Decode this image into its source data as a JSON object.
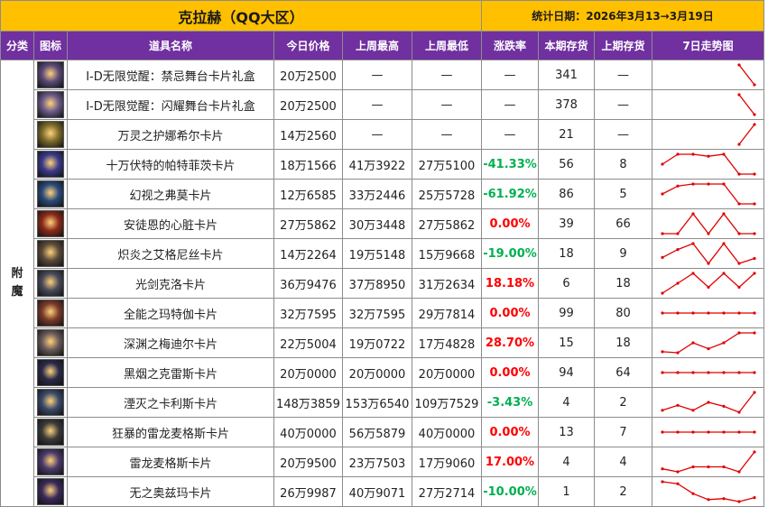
{
  "header": {
    "title": "克拉赫（QQ大区）",
    "date_label": "统计日期：2026年3月13→3月19日"
  },
  "columns": [
    "分类",
    "图标",
    "道具名称",
    "今日价格",
    "上周最高",
    "上周最低",
    "涨跌率",
    "本期存货",
    "上期存货",
    "7日走势图"
  ],
  "category": "附魔",
  "colors": {
    "title_bg": "#ffc000",
    "header_bg": "#7030a0",
    "header_text": "#ffffff",
    "rate_up": "#ff0000",
    "rate_down": "#00b050",
    "trend_line": "#e00000"
  },
  "rows": [
    {
      "name": "I-D无限觉醒：禁忌舞台卡片礼盒",
      "price": "20万2500",
      "high": "—",
      "low": "—",
      "rate": "—",
      "stock": "341",
      "prev": "—",
      "icon": "card-icon",
      "icon_color": "#5a4a78",
      "rate_kind": "none",
      "trend": [
        null,
        null,
        null,
        null,
        null,
        2,
        0
      ]
    },
    {
      "name": "I-D无限觉醒：闪耀舞台卡片礼盒",
      "price": "20万2500",
      "high": "—",
      "low": "—",
      "rate": "—",
      "stock": "378",
      "prev": "—",
      "icon": "card-icon",
      "icon_color": "#6a5a88",
      "rate_kind": "none",
      "trend": [
        null,
        null,
        null,
        null,
        null,
        2,
        0
      ]
    },
    {
      "name": "万灵之护娜希尔卡片",
      "price": "14万2560",
      "high": "—",
      "low": "—",
      "rate": "—",
      "stock": "21",
      "prev": "—",
      "icon": "card-icon",
      "icon_color": "#7a6a2a",
      "rate_kind": "none",
      "trend": [
        null,
        null,
        null,
        null,
        null,
        0,
        2
      ]
    },
    {
      "name": "十万伏特的帕特菲茨卡片",
      "price": "18万1566",
      "high": "41万3922",
      "low": "27万5100",
      "rate": "-41.33%",
      "stock": "56",
      "prev": "8",
      "icon": "card-icon",
      "icon_color": "#3a3a8a",
      "rate_kind": "down",
      "trend": [
        1,
        2,
        2,
        1.8,
        2,
        0,
        0
      ]
    },
    {
      "name": "幻视之弗莫卡片",
      "price": "12万6585",
      "high": "33万2446",
      "low": "25万5728",
      "rate": "-61.92%",
      "stock": "86",
      "prev": "5",
      "icon": "card-icon",
      "icon_color": "#2a4a7a",
      "rate_kind": "down",
      "trend": [
        1,
        1.8,
        2,
        2,
        2,
        0,
        0
      ]
    },
    {
      "name": "安徒恩的心脏卡片",
      "price": "27万5862",
      "high": "30万3448",
      "low": "27万5862",
      "rate": "0.00%",
      "stock": "39",
      "prev": "66",
      "icon": "card-icon",
      "icon_color": "#8a2a1a",
      "rate_kind": "zero",
      "trend": [
        0,
        0,
        2,
        0,
        2,
        0,
        0
      ]
    },
    {
      "name": "炽炎之艾格尼丝卡片",
      "price": "14万2264",
      "high": "19万5148",
      "low": "15万9668",
      "rate": "-19.00%",
      "stock": "18",
      "prev": "9",
      "icon": "card-icon",
      "icon_color": "#5a4a3a",
      "rate_kind": "down",
      "trend": [
        0.6,
        1.4,
        2,
        0,
        2,
        0,
        0.5
      ]
    },
    {
      "name": "光剑克洛卡片",
      "price": "36万9476",
      "high": "37万8950",
      "low": "31万2634",
      "rate": "18.18%",
      "stock": "6",
      "prev": "18",
      "icon": "card-icon",
      "icon_color": "#4a4a5a",
      "rate_kind": "up",
      "trend": [
        0,
        1,
        2,
        0.6,
        2,
        0.6,
        2
      ]
    },
    {
      "name": "全能之玛特伽卡片",
      "price": "32万7595",
      "high": "32万7595",
      "low": "29万7814",
      "rate": "0.00%",
      "stock": "99",
      "prev": "80",
      "icon": "card-icon",
      "icon_color": "#7a3a2a",
      "rate_kind": "zero",
      "trend": [
        1,
        1,
        1,
        1,
        1,
        1,
        1
      ]
    },
    {
      "name": "深渊之梅迪尔卡片",
      "price": "22万5004",
      "high": "19万0722",
      "low": "17万4828",
      "rate": "28.70%",
      "stock": "15",
      "prev": "18",
      "icon": "card-icon",
      "icon_color": "#6a5a5a",
      "rate_kind": "up",
      "trend": [
        0.1,
        0,
        1,
        0.4,
        1,
        2,
        2
      ]
    },
    {
      "name": "黑烟之克雷斯卡片",
      "price": "20万0000",
      "high": "20万0000",
      "low": "20万0000",
      "rate": "0.00%",
      "stock": "94",
      "prev": "64",
      "icon": "card-icon",
      "icon_color": "#2a2a4a",
      "rate_kind": "zero",
      "trend": [
        1,
        1,
        1,
        1,
        1,
        1,
        1
      ]
    },
    {
      "name": "湮灭之卡利斯卡片",
      "price": "148万3859",
      "high": "153万6540",
      "low": "109万7529",
      "rate": "-3.43%",
      "stock": "4",
      "prev": "2",
      "icon": "card-icon",
      "icon_color": "#3a4a6a",
      "rate_kind": "down",
      "trend": [
        0.2,
        0.7,
        0.2,
        1,
        0.6,
        0,
        2
      ]
    },
    {
      "name": "狂暴的雷龙麦格斯卡片",
      "price": "40万0000",
      "high": "56万5879",
      "low": "40万0000",
      "rate": "0.00%",
      "stock": "13",
      "prev": "7",
      "icon": "card-icon",
      "icon_color": "#3a3a3a",
      "rate_kind": "zero",
      "trend": [
        1,
        1,
        1,
        1,
        1,
        1,
        1
      ]
    },
    {
      "name": "雷龙麦格斯卡片",
      "price": "20万9500",
      "high": "23万7503",
      "low": "17万9060",
      "rate": "17.00%",
      "stock": "4",
      "prev": "4",
      "icon": "card-icon",
      "icon_color": "#4a3a6a",
      "rate_kind": "up",
      "trend": [
        0.3,
        0,
        0.5,
        0.5,
        0.5,
        0,
        2
      ]
    },
    {
      "name": "无之奥兹玛卡片",
      "price": "26万9987",
      "high": "40万9071",
      "low": "27万2714",
      "rate": "-10.00%",
      "stock": "1",
      "prev": "2",
      "icon": "card-icon",
      "icon_color": "#3a2a5a",
      "rate_kind": "down",
      "trend": [
        2,
        1.8,
        0.8,
        0.2,
        0.3,
        0,
        0.4
      ]
    }
  ]
}
